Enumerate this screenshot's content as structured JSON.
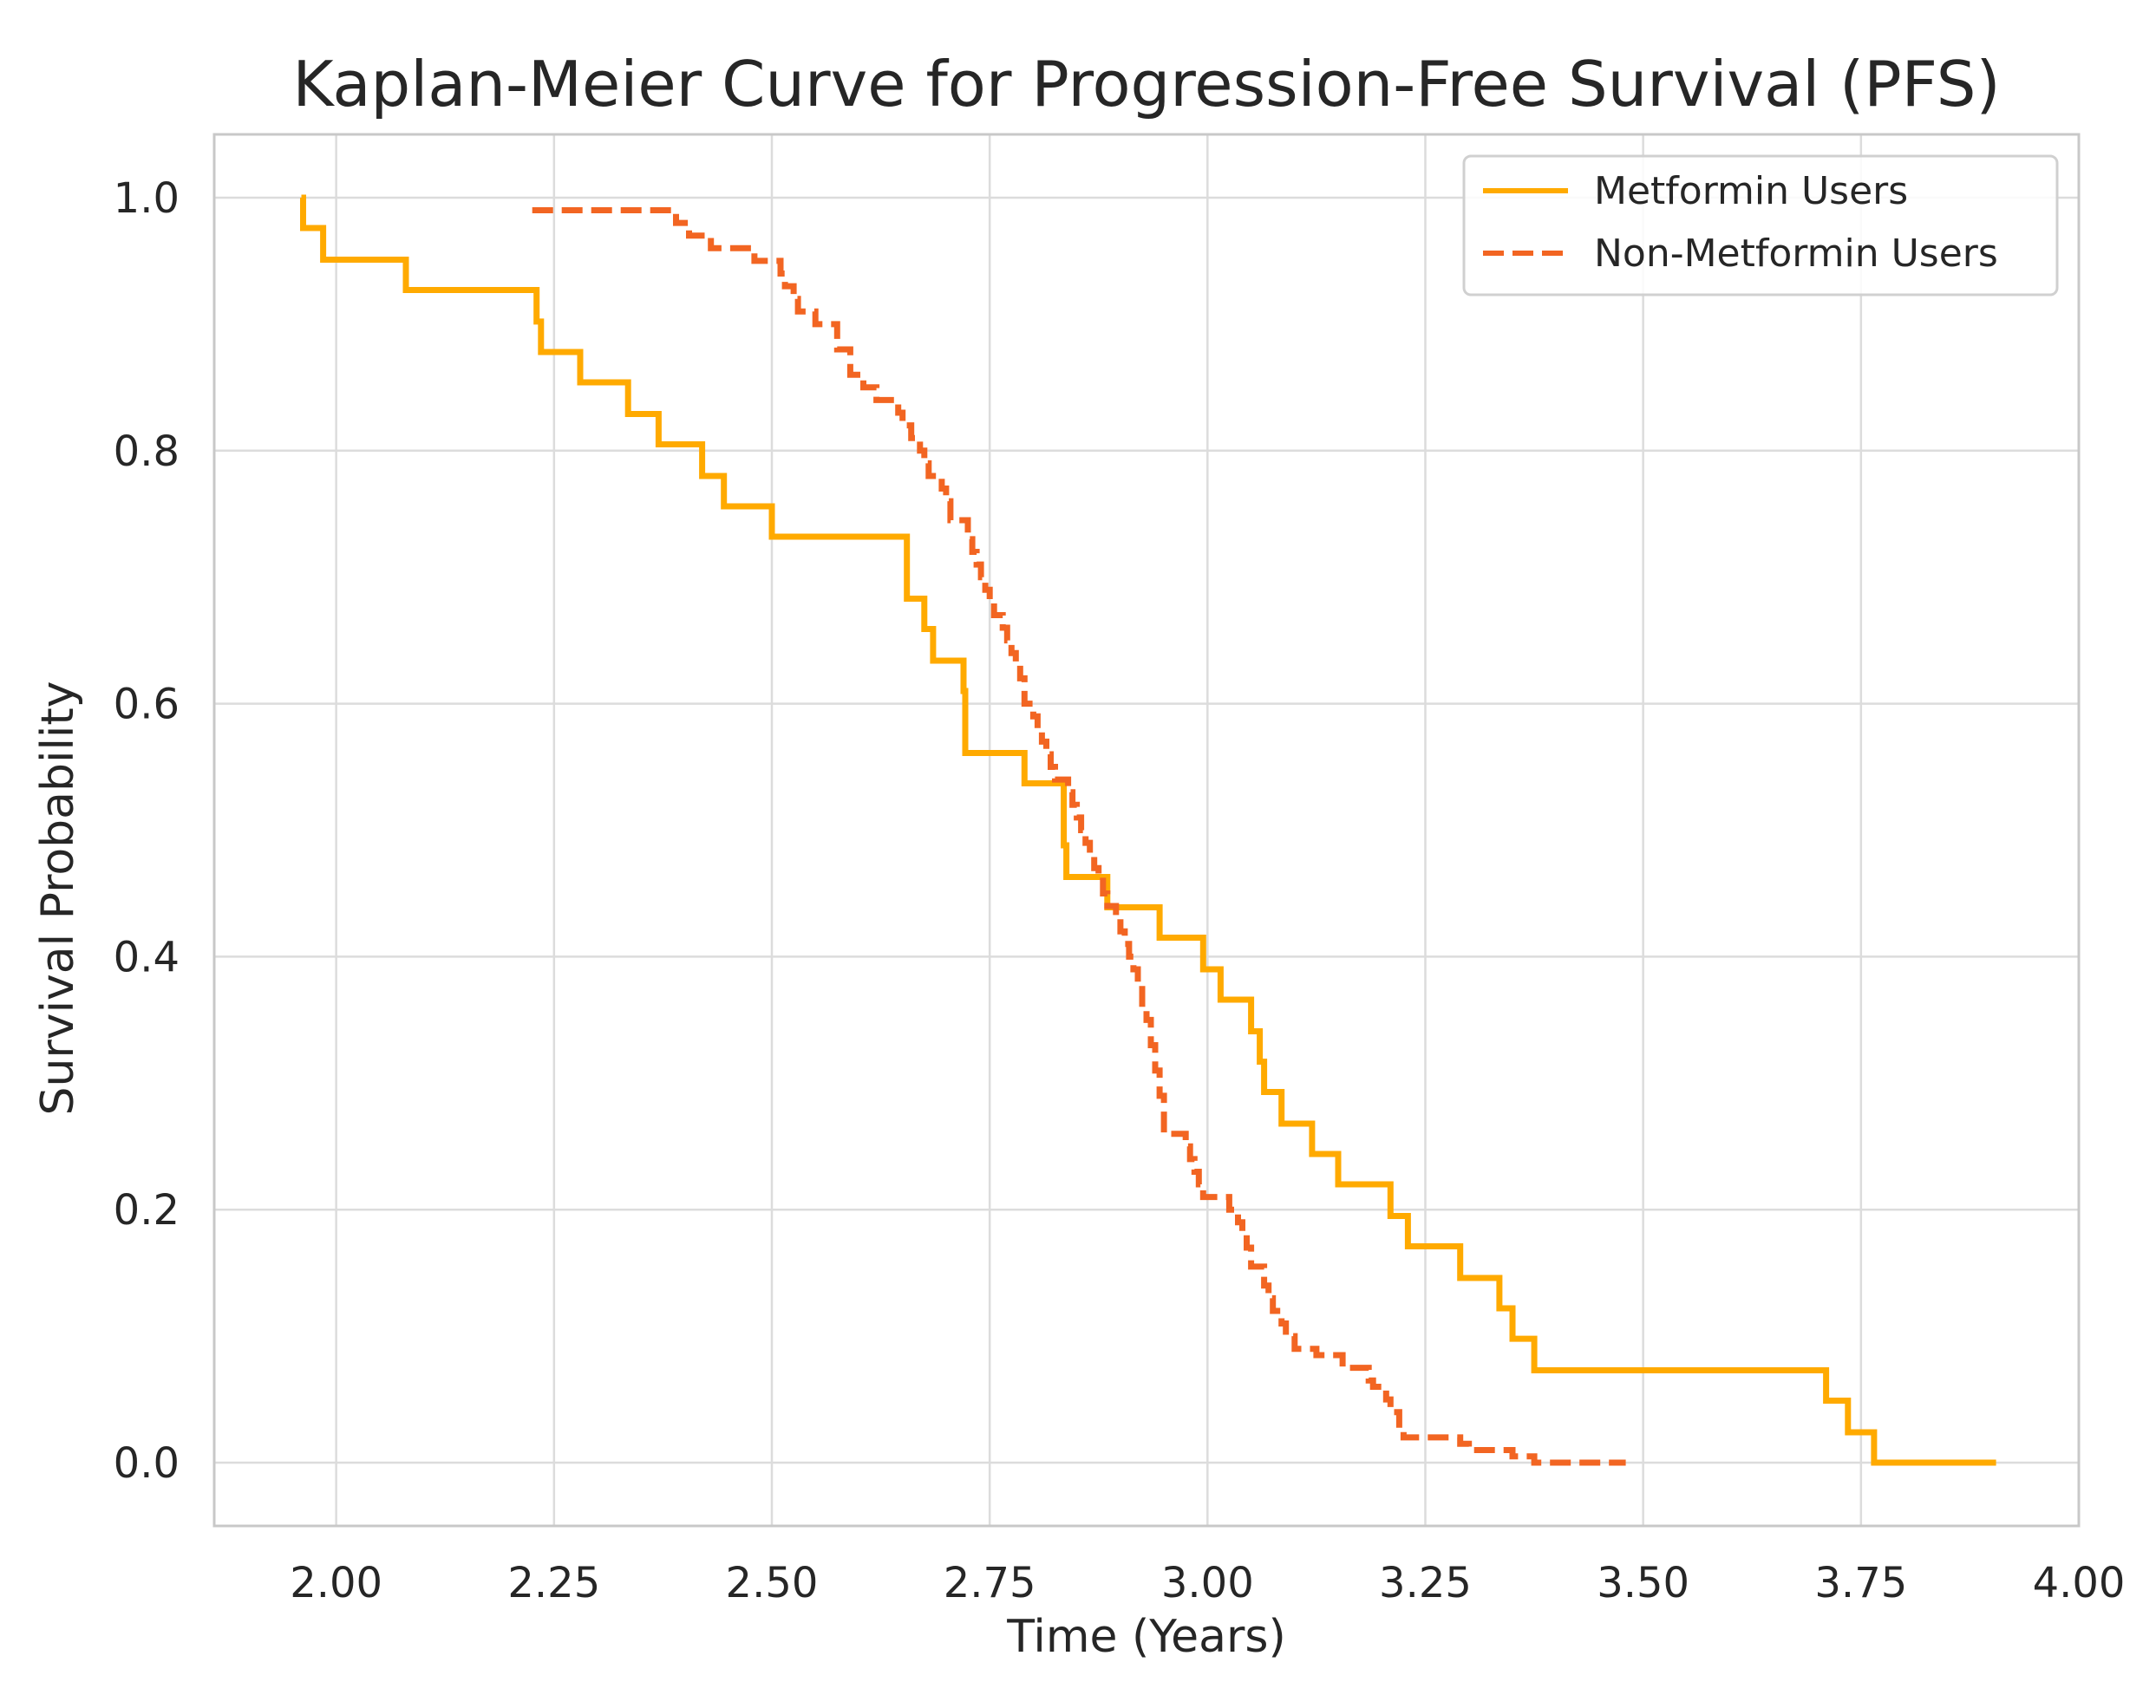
{
  "chart_data": {
    "type": "line",
    "title": "Kaplan-Meier Curve for Progression-Free Survival (PFS)",
    "xlabel": "Time (Years)",
    "ylabel": "Survival Probability",
    "xlim": [
      1.86,
      4.0
    ],
    "ylim": [
      -0.05,
      1.05
    ],
    "xticks": [
      2.0,
      2.25,
      2.5,
      2.75,
      3.0,
      3.25,
      3.5,
      3.75,
      4.0
    ],
    "xtick_labels": [
      "2.00",
      "2.25",
      "2.50",
      "2.75",
      "3.00",
      "3.25",
      "3.50",
      "3.75",
      "4.00"
    ],
    "yticks": [
      0.0,
      0.2,
      0.4,
      0.6,
      0.8,
      1.0
    ],
    "ytick_labels": [
      "0.0",
      "0.2",
      "0.4",
      "0.6",
      "0.8",
      "1.0"
    ],
    "grid": true,
    "legend_position": "top-right",
    "series": [
      {
        "name": "Metformin Users",
        "color": "#FFAA00",
        "style": "solid",
        "steps": [
          [
            1.96,
            1.0
          ],
          [
            1.962,
            0.976
          ],
          [
            1.985,
            0.951
          ],
          [
            2.08,
            0.927
          ],
          [
            2.23,
            0.902
          ],
          [
            2.235,
            0.878
          ],
          [
            2.28,
            0.854
          ],
          [
            2.335,
            0.829
          ],
          [
            2.37,
            0.805
          ],
          [
            2.42,
            0.78
          ],
          [
            2.445,
            0.756
          ],
          [
            2.5,
            0.732
          ],
          [
            2.655,
            0.683
          ],
          [
            2.675,
            0.659
          ],
          [
            2.685,
            0.634
          ],
          [
            2.72,
            0.61
          ],
          [
            2.722,
            0.561
          ],
          [
            2.79,
            0.537
          ],
          [
            2.835,
            0.488
          ],
          [
            2.838,
            0.463
          ],
          [
            2.885,
            0.439
          ],
          [
            2.945,
            0.415
          ],
          [
            2.995,
            0.39
          ],
          [
            3.015,
            0.366
          ],
          [
            3.05,
            0.341
          ],
          [
            3.06,
            0.317
          ],
          [
            3.065,
            0.293
          ],
          [
            3.085,
            0.268
          ],
          [
            3.12,
            0.244
          ],
          [
            3.15,
            0.22
          ],
          [
            3.21,
            0.195
          ],
          [
            3.23,
            0.171
          ],
          [
            3.29,
            0.146
          ],
          [
            3.335,
            0.122
          ],
          [
            3.35,
            0.098
          ],
          [
            3.375,
            0.073
          ],
          [
            3.71,
            0.049
          ],
          [
            3.735,
            0.024
          ],
          [
            3.765,
            0.0
          ],
          [
            3.905,
            0.0
          ]
        ]
      },
      {
        "name": "Non-Metformin Users",
        "color": "#F26522",
        "style": "dashed",
        "steps": [
          [
            2.225,
            0.99
          ],
          [
            2.26,
            0.99
          ],
          [
            2.39,
            0.98
          ],
          [
            2.405,
            0.97
          ],
          [
            2.43,
            0.96
          ],
          [
            2.48,
            0.95
          ],
          [
            2.51,
            0.94
          ],
          [
            2.515,
            0.93
          ],
          [
            2.525,
            0.92
          ],
          [
            2.53,
            0.91
          ],
          [
            2.55,
            0.9
          ],
          [
            2.575,
            0.88
          ],
          [
            2.59,
            0.86
          ],
          [
            2.605,
            0.85
          ],
          [
            2.62,
            0.84
          ],
          [
            2.645,
            0.83
          ],
          [
            2.65,
            0.82
          ],
          [
            2.66,
            0.81
          ],
          [
            2.67,
            0.8
          ],
          [
            2.675,
            0.79
          ],
          [
            2.68,
            0.78
          ],
          [
            2.695,
            0.77
          ],
          [
            2.7,
            0.76
          ],
          [
            2.705,
            0.745
          ],
          [
            2.725,
            0.73
          ],
          [
            2.73,
            0.72
          ],
          [
            2.735,
            0.71
          ],
          [
            2.74,
            0.7
          ],
          [
            2.745,
            0.69
          ],
          [
            2.75,
            0.68
          ],
          [
            2.755,
            0.67
          ],
          [
            2.765,
            0.66
          ],
          [
            2.77,
            0.65
          ],
          [
            2.775,
            0.64
          ],
          [
            2.78,
            0.63
          ],
          [
            2.785,
            0.62
          ],
          [
            2.79,
            0.6
          ],
          [
            2.8,
            0.59
          ],
          [
            2.805,
            0.58
          ],
          [
            2.81,
            0.57
          ],
          [
            2.815,
            0.56
          ],
          [
            2.82,
            0.55
          ],
          [
            2.825,
            0.54
          ],
          [
            2.84,
            0.53
          ],
          [
            2.845,
            0.52
          ],
          [
            2.85,
            0.51
          ],
          [
            2.855,
            0.5
          ],
          [
            2.86,
            0.49
          ],
          [
            2.865,
            0.48
          ],
          [
            2.87,
            0.47
          ],
          [
            2.875,
            0.46
          ],
          [
            2.88,
            0.45
          ],
          [
            2.885,
            0.44
          ],
          [
            2.895,
            0.43
          ],
          [
            2.9,
            0.42
          ],
          [
            2.905,
            0.41
          ],
          [
            2.91,
            0.4
          ],
          [
            2.915,
            0.39
          ],
          [
            2.92,
            0.38
          ],
          [
            2.925,
            0.36
          ],
          [
            2.93,
            0.35
          ],
          [
            2.935,
            0.33
          ],
          [
            2.94,
            0.31
          ],
          [
            2.945,
            0.29
          ],
          [
            2.95,
            0.26
          ],
          [
            2.975,
            0.25
          ],
          [
            2.98,
            0.24
          ],
          [
            2.985,
            0.23
          ],
          [
            2.99,
            0.22
          ],
          [
            2.995,
            0.21
          ],
          [
            3.025,
            0.2
          ],
          [
            3.035,
            0.19
          ],
          [
            3.04,
            0.18
          ],
          [
            3.045,
            0.17
          ],
          [
            3.05,
            0.155
          ],
          [
            3.065,
            0.14
          ],
          [
            3.07,
            0.13
          ],
          [
            3.075,
            0.12
          ],
          [
            3.085,
            0.11
          ],
          [
            3.09,
            0.1
          ],
          [
            3.1,
            0.09
          ],
          [
            3.125,
            0.085
          ],
          [
            3.155,
            0.075
          ],
          [
            3.185,
            0.065
          ],
          [
            3.19,
            0.06
          ],
          [
            3.205,
            0.05
          ],
          [
            3.21,
            0.04
          ],
          [
            3.22,
            0.03
          ],
          [
            3.225,
            0.02
          ],
          [
            3.29,
            0.015
          ],
          [
            3.3,
            0.01
          ],
          [
            3.35,
            0.005
          ],
          [
            3.375,
            0.0
          ],
          [
            3.48,
            0.0
          ]
        ]
      }
    ]
  }
}
